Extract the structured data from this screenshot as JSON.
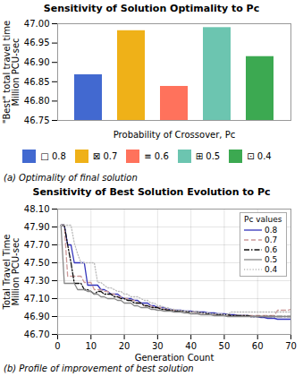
{
  "chart_data": [
    {
      "type": "bar",
      "title": "Sensitivity of Solution Optimality to Pc",
      "xlabel": "Probability of Crossover, Pc",
      "ylabel": "\"Best\" total travel time\nMillion PCU-sec",
      "caption": "(a) Optimality of final solution",
      "categories": [
        "□ 0.8",
        "⊠ 0.7",
        "≡ 0.6",
        "⊞ 0.5",
        "⊡ 0.4"
      ],
      "values": [
        46.868,
        46.982,
        46.838,
        46.99,
        46.915
      ],
      "ylim": [
        46.75,
        47.0
      ],
      "yticks": [
        46.75,
        {
          "value": 46.8,
          "label": "46.80"
        },
        46.85,
        {
          "value": 46.9,
          "label": "46.90"
        },
        46.95,
        {
          "value": 47.0,
          "label": "47.00"
        }
      ],
      "tick_labels": "y",
      "legend": "bottom",
      "grid": false
    },
    {
      "type": "line",
      "title": "Sensitivity of Best Solution Evolution to Pc",
      "xlabel": "Generation Count",
      "ylabel": "Total Travel Time\nMillion PCU-sec",
      "caption": "(b) Profile of improvement of best solution",
      "legend_title": "Pc values",
      "legend": "upper right",
      "grid": true,
      "xlim": [
        0,
        70
      ],
      "xticks": [
        0,
        10,
        20,
        30,
        40,
        50,
        60,
        70
      ],
      "ylim": [
        46.7,
        48.1
      ],
      "yticks": [
        {
          "value": 46.7,
          "label": "46.70"
        },
        {
          "value": 46.9,
          "label": "46.90"
        },
        {
          "value": 47.1,
          "label": "47.10"
        },
        {
          "value": 47.3,
          "label": "47.30"
        },
        {
          "value": 47.5,
          "label": "47.50"
        },
        {
          "value": 47.7,
          "label": "47.70"
        },
        {
          "value": 47.9,
          "label": "47.90"
        },
        {
          "value": 48.1,
          "label": "48.10"
        }
      ],
      "x": [
        1,
        2,
        3,
        4,
        5,
        6,
        7,
        8,
        9,
        10,
        11,
        12,
        13,
        14,
        15,
        16,
        17,
        18,
        19,
        20,
        21,
        22,
        23,
        24,
        25,
        26,
        27,
        28,
        29,
        30,
        31,
        32,
        33,
        34,
        35,
        36,
        37,
        38,
        39,
        40,
        41,
        42,
        43,
        44,
        45,
        46,
        47,
        48,
        49,
        50,
        51,
        52,
        53,
        54,
        55,
        56,
        57,
        58,
        59,
        60,
        61,
        62,
        63,
        64,
        65,
        66,
        67,
        68,
        69,
        70
      ],
      "series": [
        {
          "name": "0.8",
          "color": "#3333bb",
          "line_style": "solid",
          "values": [
            47.92,
            47.92,
            47.7,
            47.7,
            47.5,
            47.5,
            47.5,
            47.5,
            47.25,
            47.25,
            47.25,
            47.25,
            47.2,
            47.2,
            47.18,
            47.15,
            47.15,
            47.15,
            47.12,
            47.1,
            47.1,
            47.1,
            47.08,
            47.08,
            47.05,
            47.05,
            47.05,
            47.02,
            47.02,
            47.0,
            47.0,
            47.0,
            46.98,
            46.98,
            46.97,
            46.97,
            46.97,
            46.96,
            46.96,
            46.96,
            46.95,
            46.95,
            46.95,
            46.95,
            46.94,
            46.94,
            46.94,
            46.93,
            46.93,
            46.93,
            46.92,
            46.92,
            46.92,
            46.91,
            46.91,
            46.91,
            46.91,
            46.9,
            46.9,
            46.9,
            46.89,
            46.89,
            46.88,
            46.88,
            46.88,
            46.87,
            46.87,
            46.87,
            46.87,
            46.87
          ]
        },
        {
          "name": "0.7",
          "color": "#cc9999",
          "line_style": "dashed",
          "values": [
            47.92,
            47.92,
            47.35,
            47.35,
            47.35,
            47.35,
            47.35,
            47.28,
            47.28,
            47.28,
            47.2,
            47.2,
            47.2,
            47.18,
            47.18,
            47.15,
            47.15,
            47.12,
            47.12,
            47.1,
            47.1,
            47.08,
            47.08,
            47.05,
            47.05,
            47.02,
            47.02,
            47.02,
            47.0,
            47.0,
            47.0,
            46.98,
            46.98,
            46.97,
            46.97,
            46.96,
            46.96,
            46.96,
            46.95,
            46.95,
            46.95,
            46.94,
            46.94,
            46.93,
            46.93,
            46.93,
            46.92,
            46.92,
            46.92,
            46.92,
            46.91,
            46.91,
            46.91,
            46.91,
            46.91,
            46.91,
            46.91,
            46.91,
            46.91,
            46.91,
            46.91,
            46.91,
            46.91,
            46.91,
            46.91,
            46.97,
            46.97,
            46.97,
            46.97,
            46.98
          ]
        },
        {
          "name": "0.6",
          "color": "#111111",
          "line_style": "dashdot",
          "values": [
            47.92,
            47.92,
            47.7,
            47.5,
            47.27,
            47.27,
            47.27,
            47.2,
            47.2,
            47.18,
            47.15,
            47.18,
            47.18,
            47.15,
            47.15,
            47.15,
            47.12,
            47.12,
            47.1,
            47.1,
            47.08,
            47.08,
            47.05,
            47.05,
            47.05,
            47.02,
            47.02,
            47.0,
            47.0,
            47.0,
            46.98,
            46.98,
            46.97,
            46.97,
            46.96,
            46.96,
            46.96,
            46.96,
            46.95,
            46.95,
            46.95,
            46.95,
            46.94,
            46.94,
            46.93,
            46.93,
            46.93,
            46.92,
            46.92,
            46.92,
            46.92,
            46.91,
            46.91,
            46.91,
            46.91,
            46.91,
            46.91,
            46.9,
            46.9,
            46.9,
            46.9,
            46.9,
            46.9,
            46.9,
            46.9,
            46.9,
            46.9,
            46.9,
            46.9,
            46.9
          ]
        },
        {
          "name": "0.5",
          "color": "#888888",
          "line_style": "solid",
          "values": [
            47.92,
            47.27,
            47.27,
            47.27,
            47.27,
            47.2,
            47.2,
            47.2,
            47.18,
            47.18,
            47.15,
            47.15,
            47.12,
            47.12,
            47.1,
            47.1,
            47.1,
            47.08,
            47.08,
            47.05,
            47.05,
            47.05,
            47.02,
            47.02,
            47.0,
            47.0,
            47.0,
            46.98,
            46.98,
            46.97,
            46.97,
            46.96,
            46.96,
            46.96,
            46.95,
            46.95,
            46.95,
            46.94,
            46.94,
            46.93,
            46.93,
            46.93,
            46.92,
            46.92,
            46.92,
            46.92,
            46.91,
            46.91,
            46.91,
            46.91,
            46.9,
            46.9,
            46.9,
            46.9,
            46.9,
            46.9,
            46.9,
            46.9,
            46.9,
            46.9,
            46.9,
            46.9,
            46.9,
            46.9,
            46.9,
            46.9,
            46.9,
            46.9,
            46.9,
            46.9
          ]
        },
        {
          "name": "0.4",
          "color": "#bbbbbb",
          "line_style": "dotted",
          "values": [
            47.92,
            47.92,
            47.92,
            47.92,
            47.72,
            47.6,
            47.5,
            47.5,
            47.5,
            47.5,
            47.5,
            47.28,
            47.28,
            47.25,
            47.22,
            47.22,
            47.2,
            47.18,
            47.18,
            47.15,
            47.15,
            47.12,
            47.12,
            47.12,
            47.1,
            47.08,
            47.08,
            47.05,
            47.05,
            47.02,
            47.02,
            47.0,
            47.0,
            46.98,
            46.98,
            46.97,
            46.97,
            46.96,
            46.96,
            46.95,
            46.95,
            46.95,
            46.94,
            46.94,
            46.94,
            46.93,
            46.93,
            46.93,
            46.93,
            46.92,
            46.92,
            46.95,
            46.95,
            46.95,
            46.95,
            46.95,
            46.95,
            46.95,
            46.95,
            46.95,
            46.95,
            46.95,
            46.95,
            46.95,
            46.95,
            46.95,
            46.95,
            46.95,
            46.95,
            46.95
          ]
        }
      ]
    }
  ]
}
